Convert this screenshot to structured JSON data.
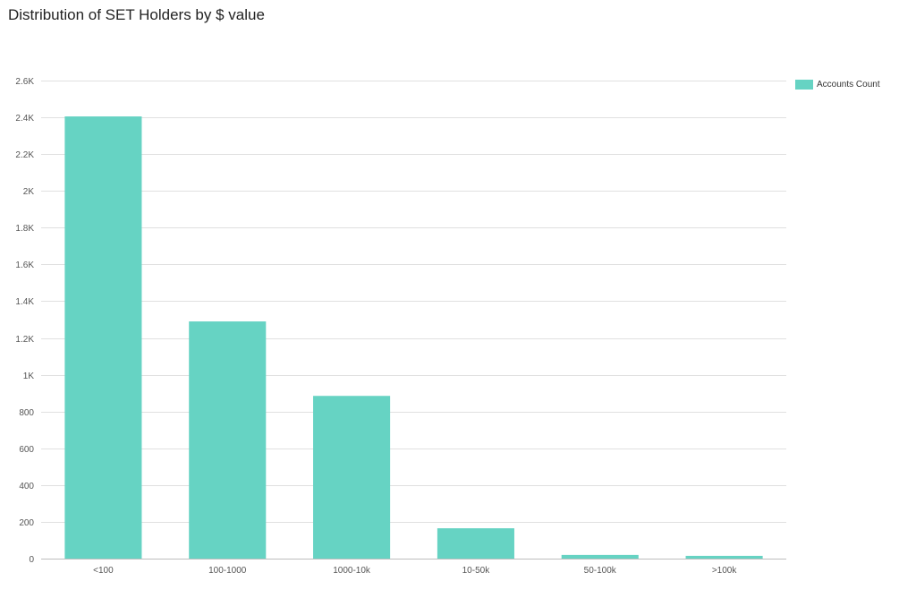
{
  "title": "Distribution of SET Holders by $ value",
  "legend": {
    "label": "Accounts Count",
    "color": "#66d3c3"
  },
  "chart_data": {
    "type": "bar",
    "title": "Distribution of SET Holders by $ value",
    "xlabel": "",
    "ylabel": "",
    "categories": [
      "<100",
      "100-1000",
      "1000-10k",
      "10-50k",
      "50-100k",
      ">100k"
    ],
    "series": [
      {
        "name": "Accounts Count",
        "values": [
          2405,
          1290,
          885,
          165,
          20,
          15
        ],
        "color": "#66d3c3"
      }
    ],
    "ylim": [
      0,
      2600
    ],
    "yticks": [
      0,
      200,
      400,
      600,
      800,
      1000,
      1200,
      1400,
      1600,
      1800,
      2000,
      2200,
      2400,
      2600
    ],
    "ytick_labels": [
      "0",
      "200",
      "400",
      "600",
      "800",
      "1K",
      "1.2K",
      "1.4K",
      "1.6K",
      "1.8K",
      "2K",
      "2.2K",
      "2.4K",
      "2.6K"
    ],
    "grid": true,
    "legend_position": "top-right"
  }
}
